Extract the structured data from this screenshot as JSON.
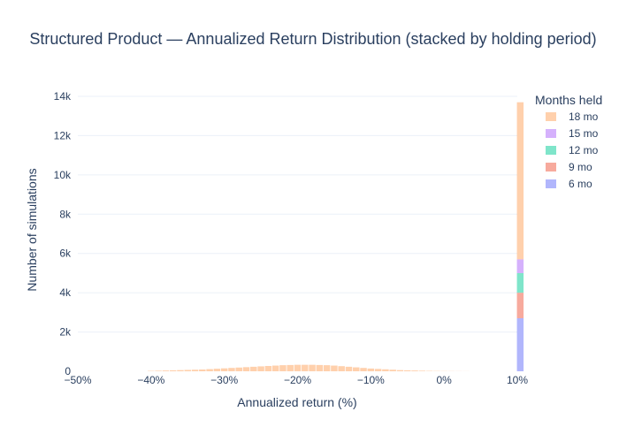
{
  "chart_data": {
    "type": "bar",
    "stacked": true,
    "title": "Structured Product — Annualized Return Distribution (stacked by holding period)",
    "xlabel": "Annualized return (%)",
    "ylabel": "Number of simulations",
    "xlim": [
      -50,
      10
    ],
    "ylim": [
      0,
      14000
    ],
    "bin_width": 1,
    "x_ticks": [
      {
        "value": -50,
        "label": "−50%"
      },
      {
        "value": -40,
        "label": "−40%"
      },
      {
        "value": -30,
        "label": "−30%"
      },
      {
        "value": -20,
        "label": "−20%"
      },
      {
        "value": -10,
        "label": "−10%"
      },
      {
        "value": 0,
        "label": "0%"
      },
      {
        "value": 10,
        "label": "10%"
      }
    ],
    "y_ticks": [
      {
        "value": 0,
        "label": "0"
      },
      {
        "value": 2000,
        "label": "2k"
      },
      {
        "value": 4000,
        "label": "4k"
      },
      {
        "value": 6000,
        "label": "6k"
      },
      {
        "value": 8000,
        "label": "8k"
      },
      {
        "value": 10000,
        "label": "10k"
      },
      {
        "value": 12000,
        "label": "12k"
      },
      {
        "value": 14000,
        "label": "14k"
      }
    ],
    "grid": true,
    "legend": {
      "title": "Months held",
      "position": "top-right"
    },
    "series": [
      {
        "name": "6 mo",
        "color": "#636efa",
        "x": [
          10
        ],
        "values": [
          2700
        ]
      },
      {
        "name": "9 mo",
        "color": "#ef553b",
        "x": [
          10
        ],
        "values": [
          1300
        ]
      },
      {
        "name": "12 mo",
        "color": "#00cc96",
        "x": [
          10
        ],
        "values": [
          1000
        ]
      },
      {
        "name": "15 mo",
        "color": "#ab63fa",
        "x": [
          10
        ],
        "values": [
          700
        ]
      },
      {
        "name": "18 mo",
        "color": "#ffa15a",
        "x": [
          -40,
          -39,
          -38,
          -37,
          -36,
          -35,
          -34,
          -33,
          -32,
          -31,
          -30,
          -29,
          -28,
          -27,
          -26,
          -25,
          -24,
          -23,
          -22,
          -21,
          -20,
          -19,
          -18,
          -17,
          -16,
          -15,
          -14,
          -13,
          -12,
          -11,
          -10,
          -9,
          -8,
          -7,
          -6,
          -5,
          -4,
          -3,
          -2,
          -1,
          0,
          1,
          2,
          3,
          10
        ],
        "values": [
          20,
          30,
          40,
          50,
          60,
          70,
          80,
          90,
          110,
          130,
          150,
          170,
          190,
          210,
          230,
          250,
          270,
          290,
          310,
          320,
          330,
          330,
          330,
          320,
          310,
          290,
          260,
          230,
          200,
          170,
          140,
          120,
          100,
          80,
          60,
          50,
          40,
          30,
          20,
          15,
          10,
          8,
          6,
          4,
          8000
        ]
      }
    ]
  }
}
